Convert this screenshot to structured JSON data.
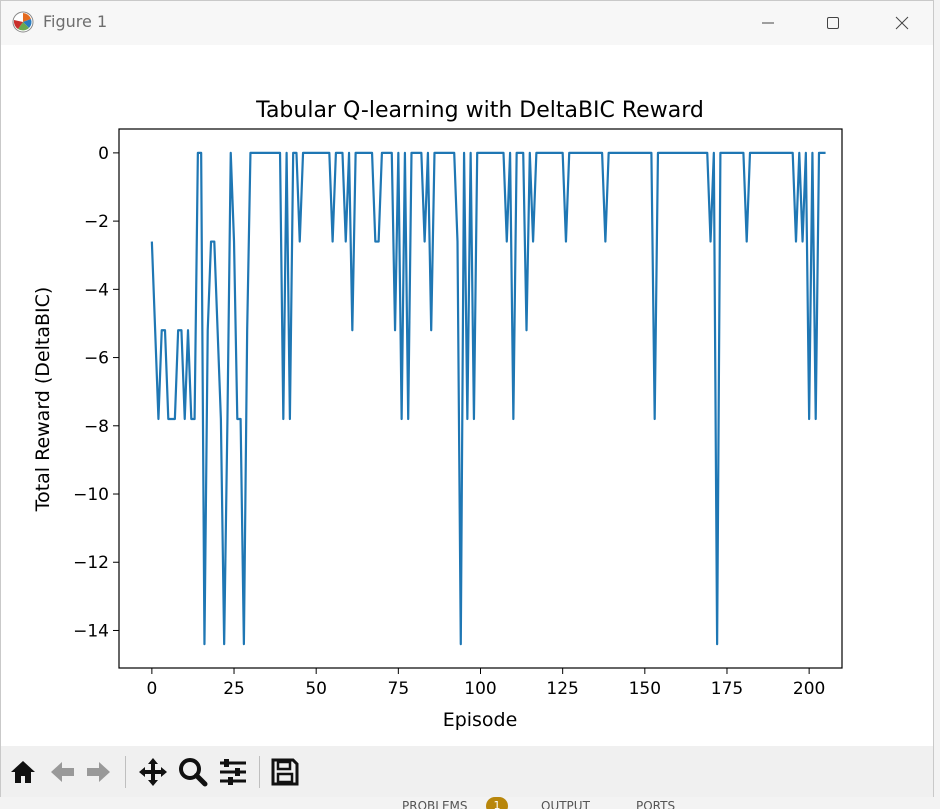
{
  "window": {
    "title": "Figure 1",
    "icons": {
      "app": "matplotlib-logo-icon",
      "minimize": "minimize-icon",
      "maximize": "maximize-icon",
      "close": "close-icon"
    }
  },
  "toolbar": {
    "buttons": [
      "home-icon",
      "back-arrow-icon",
      "forward-arrow-icon",
      "pan-move-icon",
      "zoom-magnifier-icon",
      "configure-subplots-icon",
      "save-floppy-icon"
    ]
  },
  "bottom_strip": {
    "tabs": [
      "PROBLEMS",
      "OUTPUT",
      "PORTS"
    ],
    "badge": "1"
  },
  "colors": {
    "line": "#1f77b4",
    "axis": "#000000",
    "toolbar_bg": "#f0f0f0"
  },
  "chart_data": {
    "type": "line",
    "title": "Tabular Q-learning with DeltaBIC Reward",
    "xlabel": "Episode",
    "ylabel": "Total Reward (DeltaBIC)",
    "xlim": [
      -10,
      210
    ],
    "ylim": [
      -15.1,
      0.7
    ],
    "xticks": [
      0,
      25,
      50,
      75,
      100,
      125,
      150,
      175,
      200
    ],
    "yticks": [
      0,
      -2,
      -4,
      -6,
      -8,
      -10,
      -12,
      -14
    ],
    "grid": false,
    "series": [
      {
        "values": [
          -2.6,
          -5.2,
          -7.8,
          -5.2,
          -5.2,
          -7.8,
          -7.8,
          -7.8,
          -5.2,
          -5.2,
          -7.8,
          -5.2,
          -7.8,
          -7.8,
          0,
          0,
          -14.4,
          -5.2,
          -2.6,
          -2.6,
          -5.2,
          -7.8,
          -14.4,
          -7.8,
          0,
          -2.6,
          -7.8,
          -7.8,
          -14.4,
          -5.2,
          0,
          0,
          0,
          0,
          0,
          0,
          0,
          0,
          0,
          0,
          -7.8,
          0,
          -7.8,
          0,
          0,
          -2.6,
          0,
          0,
          0,
          0,
          0,
          0,
          0,
          0,
          0,
          -2.6,
          0,
          0,
          0,
          -2.6,
          0,
          -5.2,
          0,
          0,
          0,
          0,
          0,
          0,
          -2.6,
          -2.6,
          0,
          0,
          0,
          0,
          -5.2,
          0,
          -7.8,
          0,
          -7.8,
          0,
          0,
          0,
          0,
          -2.6,
          0,
          -5.2,
          0,
          0,
          0,
          0,
          0,
          0,
          0,
          -2.6,
          -14.4,
          0,
          -7.8,
          0,
          -7.8,
          0,
          0,
          0,
          0,
          0,
          0,
          0,
          0,
          0,
          -2.6,
          0,
          -7.8,
          0,
          0,
          0,
          -5.2,
          0,
          -2.6,
          0,
          0,
          0,
          0,
          0,
          0,
          0,
          0,
          0,
          -2.6,
          0,
          0,
          0,
          0,
          0,
          0,
          0,
          0,
          0,
          0,
          0,
          -2.6,
          0,
          0,
          0,
          0,
          0,
          0,
          0,
          0,
          0,
          0,
          0,
          0,
          0,
          0,
          -7.8,
          0,
          0,
          0,
          0,
          0,
          0,
          0,
          0,
          0,
          0,
          0,
          0,
          0,
          0,
          0,
          0,
          -2.6,
          0,
          -14.4,
          0,
          0,
          0,
          0,
          0,
          0,
          0,
          0,
          -2.6,
          0,
          0,
          0,
          0,
          0,
          0,
          0,
          0,
          0,
          0,
          0,
          0,
          0,
          0,
          -2.6,
          0,
          -2.6,
          0,
          -7.8,
          0,
          -7.8,
          0,
          0,
          0
        ]
      }
    ]
  }
}
